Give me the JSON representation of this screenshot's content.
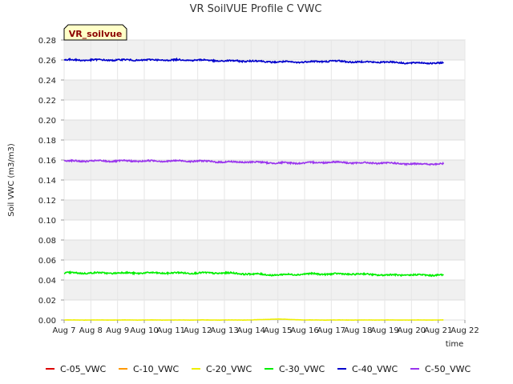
{
  "chart_data": {
    "type": "line",
    "title": "VR SoilVUE Profile C VWC",
    "xlabel": "time",
    "ylabel": "Soil VWC (m3/m3)",
    "badge": "VR_soilvue",
    "x_ticks": [
      "Aug 7",
      "Aug 8",
      "Aug 9",
      "Aug 10",
      "Aug 11",
      "Aug 12",
      "Aug 13",
      "Aug 14",
      "Aug 15",
      "Aug 16",
      "Aug 17",
      "Aug 18",
      "Aug 19",
      "Aug 20",
      "Aug 21",
      "Aug 22"
    ],
    "xlim_days": [
      0,
      15
    ],
    "ylim": [
      0,
      0.28
    ],
    "y_ticks": [
      "0.00",
      "0.02",
      "0.04",
      "0.06",
      "0.08",
      "0.10",
      "0.12",
      "0.14",
      "0.16",
      "0.18",
      "0.20",
      "0.22",
      "0.24",
      "0.26",
      "0.28"
    ],
    "grid": true,
    "legend_position": "bottom",
    "series": [
      {
        "name": "C-05_VWC",
        "color": "#dd0000",
        "x": [],
        "y": []
      },
      {
        "name": "C-10_VWC",
        "color": "#ff9900",
        "x": [],
        "y": []
      },
      {
        "name": "C-20_VWC",
        "color": "#eeee00",
        "x": [
          "Aug 7",
          "Aug 8",
          "Aug 9",
          "Aug 10",
          "Aug 11",
          "Aug 12",
          "Aug 13",
          "Aug 14",
          "Aug 15",
          "Aug 16",
          "Aug 17",
          "Aug 18",
          "Aug 19",
          "Aug 20",
          "Aug 21"
        ],
        "y": [
          0.0,
          0.0,
          0.0,
          0.0,
          0.0,
          0.0,
          0.0,
          0.0,
          0.001,
          0.0,
          0.0,
          0.0,
          0.0,
          0.0,
          0.0
        ]
      },
      {
        "name": "C-30_VWC",
        "color": "#00ee00",
        "x": [
          "Aug 7",
          "Aug 8",
          "Aug 9",
          "Aug 10",
          "Aug 11",
          "Aug 12",
          "Aug 13",
          "Aug 14",
          "Aug 15",
          "Aug 16",
          "Aug 17",
          "Aug 18",
          "Aug 19",
          "Aug 20",
          "Aug 21"
        ],
        "y": [
          0.047,
          0.047,
          0.047,
          0.047,
          0.047,
          0.047,
          0.047,
          0.046,
          0.045,
          0.046,
          0.046,
          0.046,
          0.045,
          0.045,
          0.045
        ]
      },
      {
        "name": "C-40_VWC",
        "color": "#0000cc",
        "x": [
          "Aug 7",
          "Aug 8",
          "Aug 9",
          "Aug 10",
          "Aug 11",
          "Aug 12",
          "Aug 13",
          "Aug 14",
          "Aug 15",
          "Aug 16",
          "Aug 17",
          "Aug 18",
          "Aug 19",
          "Aug 20",
          "Aug 21"
        ],
        "y": [
          0.26,
          0.26,
          0.26,
          0.26,
          0.26,
          0.26,
          0.259,
          0.259,
          0.258,
          0.258,
          0.259,
          0.258,
          0.258,
          0.257,
          0.257
        ]
      },
      {
        "name": "C-50_VWC",
        "color": "#9933ee",
        "x": [
          "Aug 7",
          "Aug 8",
          "Aug 9",
          "Aug 10",
          "Aug 11",
          "Aug 12",
          "Aug 13",
          "Aug 14",
          "Aug 15",
          "Aug 16",
          "Aug 17",
          "Aug 18",
          "Aug 19",
          "Aug 20",
          "Aug 21"
        ],
        "y": [
          0.159,
          0.159,
          0.159,
          0.159,
          0.159,
          0.159,
          0.158,
          0.158,
          0.157,
          0.157,
          0.158,
          0.157,
          0.157,
          0.156,
          0.156
        ]
      }
    ]
  }
}
